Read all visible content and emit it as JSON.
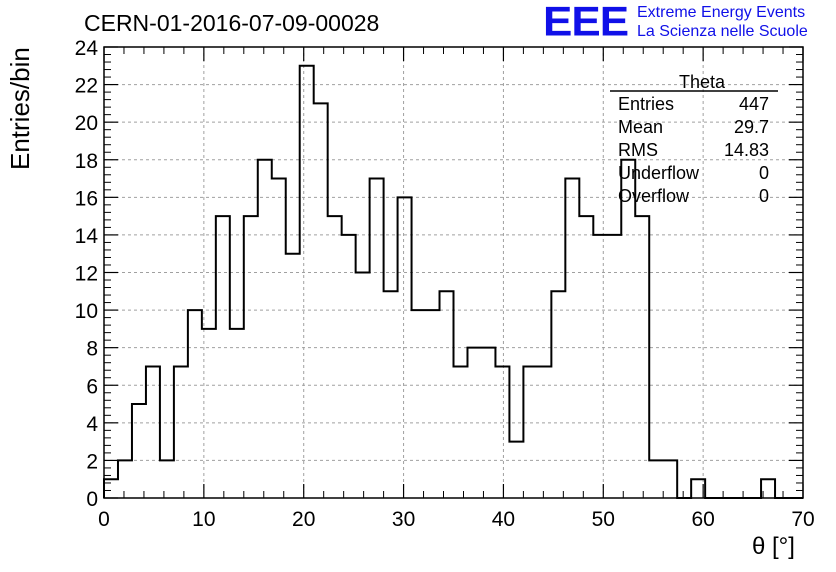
{
  "header": {
    "run_title": "CERN-01-2016-07-09-00028",
    "logo": "EEE",
    "logo_line1": "Extreme Energy Events",
    "logo_line2": "La Scienza nelle Scuole"
  },
  "colors": {
    "logo": "#1010e8",
    "hist_line": "#000000",
    "grid": "#a0a0a0"
  },
  "stats_box": {
    "title": "Theta",
    "rows": [
      {
        "label": "Entries",
        "value": "447"
      },
      {
        "label": "Mean",
        "value": "29.7"
      },
      {
        "label": "RMS",
        "value": "14.83"
      },
      {
        "label": "Underflow",
        "value": "0"
      },
      {
        "label": "Overflow",
        "value": "0"
      }
    ]
  },
  "chart_data": {
    "type": "bar",
    "title": "",
    "xlabel": "θ [°]",
    "ylabel": "Entries/bin",
    "xlim": [
      0,
      70
    ],
    "ylim": [
      0,
      24
    ],
    "bin_width": 1.4,
    "x_ticks": [
      0,
      10,
      20,
      30,
      40,
      50,
      60,
      70
    ],
    "y_ticks": [
      0,
      2,
      4,
      6,
      8,
      10,
      12,
      14,
      16,
      18,
      20,
      22,
      24
    ],
    "grid": true,
    "values": [
      1,
      2,
      5,
      7,
      2,
      7,
      10,
      9,
      15,
      9,
      15,
      18,
      17,
      13,
      23,
      21,
      15,
      14,
      12,
      17,
      11,
      16,
      10,
      10,
      11,
      7,
      8,
      8,
      7,
      3,
      7,
      7,
      11,
      17,
      15,
      14,
      14,
      18,
      15,
      2,
      2,
      0,
      1,
      0,
      0,
      0,
      0,
      1,
      0,
      0
    ]
  }
}
